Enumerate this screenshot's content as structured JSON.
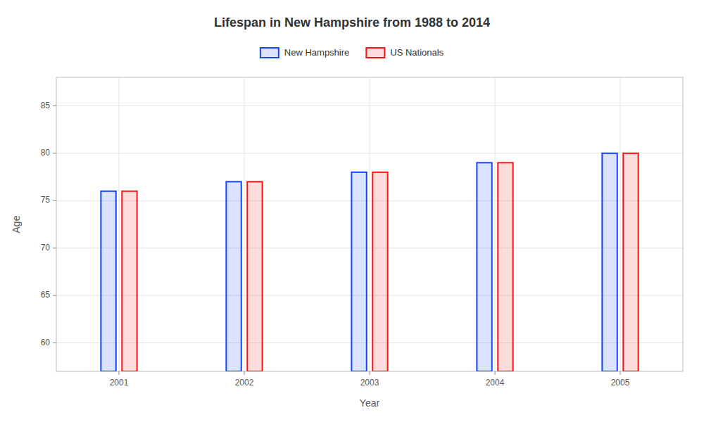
{
  "chart_data": {
    "type": "bar",
    "title": "Lifespan in New Hampshire from 1988 to 2014",
    "xlabel": "Year",
    "ylabel": "Age",
    "categories": [
      "2001",
      "2002",
      "2003",
      "2004",
      "2005"
    ],
    "series": [
      {
        "name": "New Hampshire",
        "color": "#1144ff",
        "values": [
          76,
          77,
          78,
          79,
          80
        ]
      },
      {
        "name": "US Nationals",
        "color": "#ff1111",
        "values": [
          76,
          77,
          78,
          79,
          80
        ]
      }
    ],
    "ylim": [
      57,
      88
    ],
    "yticks": [
      60,
      65,
      70,
      75,
      80,
      85
    ],
    "grid": true,
    "legend": "top"
  }
}
